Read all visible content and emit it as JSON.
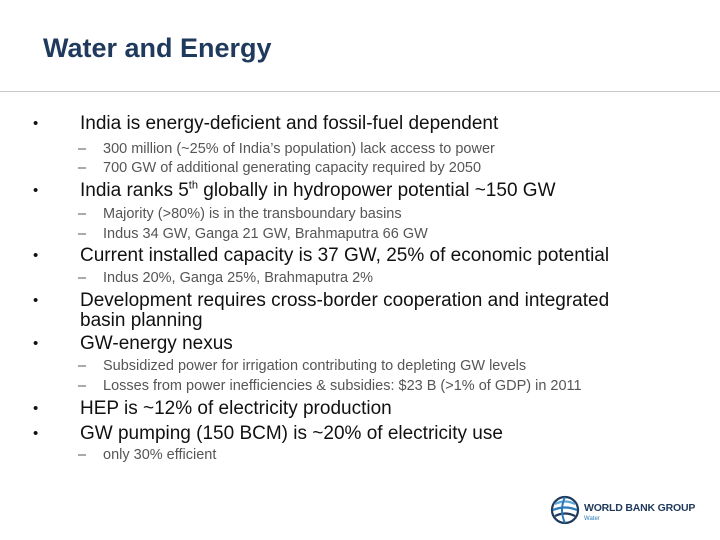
{
  "slide": {
    "title": "Water and Energy",
    "bullet_char": "•",
    "dash_char": "–"
  },
  "bullets": {
    "b1": "India is energy-deficient and fossil-fuel dependent",
    "b1_sub1": "300 million (~25% of India’s population) lack access to power",
    "b1_sub2": "700 GW of additional generating capacity required by 2050",
    "b2_pre": "India ranks 5",
    "b2_sup": "th",
    "b2_post": " globally in hydropower potential ~150 GW",
    "b2_sub1": "Majority (>80%) is in the transboundary basins",
    "b2_sub2": "Indus 34 GW, Ganga 21 GW, Brahmaputra 66 GW",
    "b3": "Current installed capacity is 37 GW, 25% of economic potential",
    "b3_sub1": "Indus 20%, Ganga 25%, Brahmaputra 2%",
    "b4": "Development requires cross-border cooperation and integrated basin planning",
    "b5": "GW-energy nexus",
    "b5_sub1": "Subsidized power for irrigation contributing to depleting GW levels",
    "b5_sub2": "Losses from power inefficiencies & subsidies: $23 B (>1% of GDP) in 2011",
    "b6": "HEP is ~12% of electricity production",
    "b7": "GW pumping (150 BCM) is ~20% of electricity use",
    "b7_sub1": "only 30% efficient"
  },
  "logo": {
    "name": "WORLD BANK GROUP",
    "sub": "Water",
    "icon": "globe-logo-icon",
    "colors": {
      "dark": "#1f3a5c",
      "blue": "#2a7ab8",
      "light": "#5aa7d8"
    }
  }
}
